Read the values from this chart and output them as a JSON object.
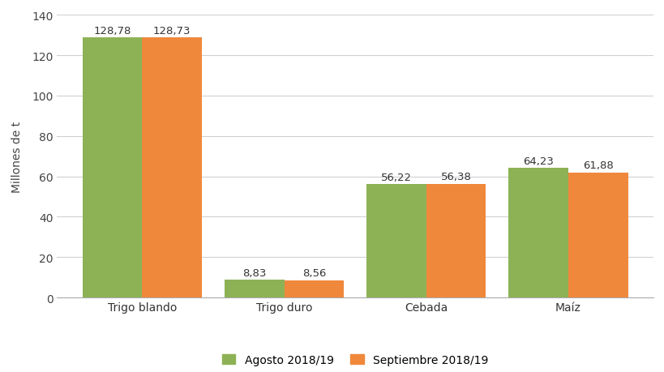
{
  "categories": [
    "Trigo blando",
    "Trigo duro",
    "Cebada",
    "Maíz"
  ],
  "agosto_values": [
    128.78,
    8.83,
    56.22,
    64.23
  ],
  "septiembre_values": [
    128.73,
    8.56,
    56.38,
    61.88
  ],
  "agosto_labels": [
    "128,78",
    "8,83",
    "56,22",
    "64,23"
  ],
  "septiembre_labels": [
    "128,73",
    "8,56",
    "56,38",
    "61,88"
  ],
  "color_agosto": "#8DB255",
  "color_septiembre": "#F0883C",
  "ylabel": "Millones de t",
  "ylim": [
    0,
    140
  ],
  "yticks": [
    0,
    20,
    40,
    60,
    80,
    100,
    120,
    140
  ],
  "legend_agosto": "Agosto 2018/19",
  "legend_septiembre": "Septiembre 2018/19",
  "bar_width": 0.42,
  "background_color": "#ffffff",
  "grid_color": "#d0d0d0",
  "label_fontsize": 9.5,
  "axis_fontsize": 10,
  "legend_fontsize": 10
}
